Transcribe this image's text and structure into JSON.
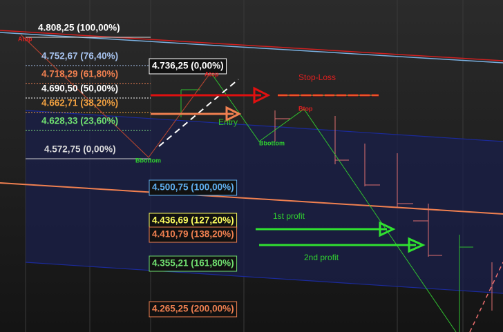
{
  "fib_left": {
    "levels": [
      "4.808,25 (100,00%)",
      "4.752,67 (76,40%)",
      "4.718,29 (61,80%)",
      "4.690,50 (50,00%)",
      "4.662,71 (38,20%)",
      "4.628,33 (23,60%)",
      "4.572,75 (0,00%)"
    ]
  },
  "fib_right": {
    "levels": [
      "4.736,25 (0,00%)",
      "4.500,75 (100,00%)",
      "4.436,69 (127,20%)",
      "4.410,79 (138,20%)",
      "4.355,21 (161,80%)",
      "4.265,25 (200,00%)"
    ]
  },
  "annotations": {
    "stop_loss": "Stop-Loss",
    "entry": "Entry",
    "first_profit": "1st profit",
    "second_profit": "2nd profit"
  },
  "pivots": {
    "bottoms": [
      "Bbottom",
      "Bbottom"
    ],
    "tops": [
      "Atop",
      "Atop",
      "Btop"
    ]
  }
}
